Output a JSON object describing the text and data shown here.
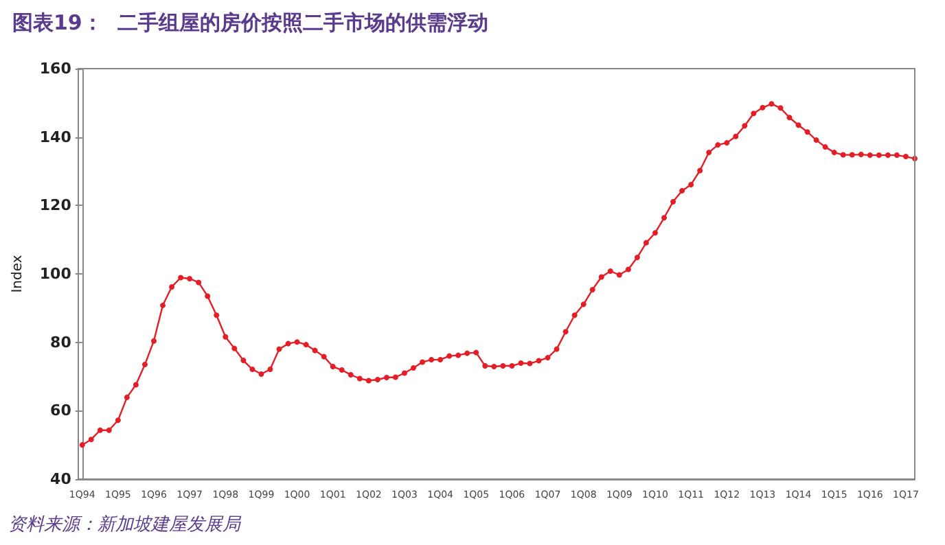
{
  "chart_data": {
    "type": "line",
    "title": "图表19：  二手组屋的房价按照二手市场的供需浮动",
    "ylabel": "Index",
    "categories": [
      "1Q94",
      null,
      null,
      null,
      "1Q95",
      null,
      null,
      null,
      "1Q96",
      null,
      null,
      null,
      "1Q97",
      null,
      null,
      null,
      "1Q98",
      null,
      null,
      null,
      "1Q99",
      null,
      null,
      null,
      "1Q00",
      null,
      null,
      null,
      "1Q01",
      null,
      null,
      null,
      "1Q02",
      null,
      null,
      null,
      "1Q03",
      null,
      null,
      null,
      "1Q04",
      null,
      null,
      null,
      "1Q05",
      null,
      null,
      null,
      "1Q06",
      null,
      null,
      null,
      "1Q07",
      null,
      null,
      null,
      "1Q08",
      null,
      null,
      null,
      "1Q09",
      null,
      null,
      null,
      "1Q10",
      null,
      null,
      null,
      "1Q11",
      null,
      null,
      null,
      "1Q12",
      null,
      null,
      null,
      "1Q13",
      null,
      null,
      null,
      "1Q14",
      null,
      null,
      null,
      "1Q15",
      null,
      null,
      null,
      "1Q16",
      null,
      null,
      null,
      "1Q17",
      null
    ],
    "series": [
      {
        "color": "#e41e26",
        "values": [
          50,
          51.6,
          54.3,
          54.3,
          57.2,
          63.9,
          67.6,
          73.5,
          80.4,
          90.8,
          96.2,
          98.9,
          98.6,
          97.5,
          93.5,
          87.9,
          81.6,
          78.2,
          74.7,
          72.1,
          70.7,
          72.1,
          78,
          79.6,
          80.1,
          79.3,
          77.6,
          75.8,
          72.9,
          71.9,
          70.5,
          69.4,
          68.8,
          69.1,
          69.7,
          69.8,
          71,
          72.5,
          74.2,
          74.9,
          74.9,
          76,
          76.2,
          76.8,
          77,
          73.1,
          72.9,
          73.1,
          73.1,
          73.9,
          73.8,
          74.6,
          75.5,
          78,
          83.1,
          87.9,
          91.1,
          95.4,
          99.1,
          100.8,
          99.7,
          101.3,
          104.8,
          109.1,
          112,
          116.4,
          121.1,
          124.3,
          126.1,
          130.2,
          135.5,
          137.7,
          138.3,
          140.2,
          143.3,
          146.9,
          148.6,
          149.7,
          148.5,
          145.7,
          143.5,
          141.5,
          139.1,
          137.1,
          135.5,
          134.8,
          134.8,
          134.9,
          134.7,
          134.7,
          134.7,
          134.7,
          134.3,
          133.7
        ]
      }
    ],
    "ylim": [
      40,
      160
    ],
    "yticks": [
      40,
      60,
      80,
      100,
      120,
      140,
      160
    ],
    "grid": false,
    "marker": "circle",
    "line_style": "solid",
    "annotations": [
      "资料来源：新加坡建屋发展局"
    ]
  }
}
